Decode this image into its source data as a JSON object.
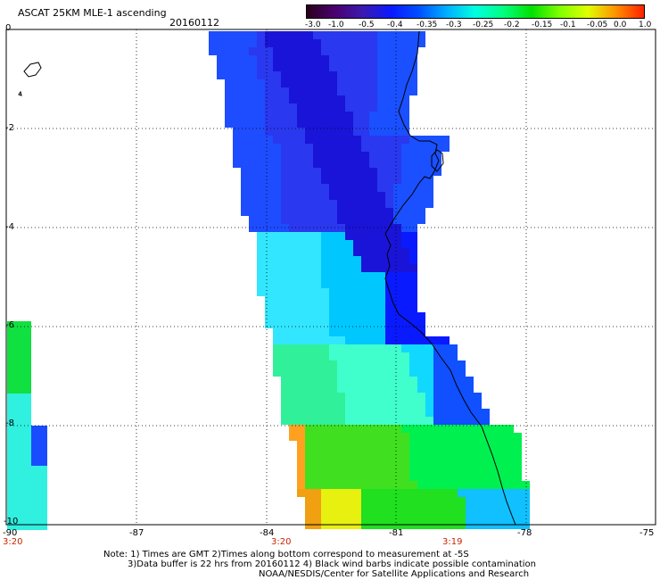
{
  "header": {
    "title": "ASCAT 25KM MLE-1 ascending",
    "date": "20160112"
  },
  "colorbar": {
    "labels": [
      "-3.0",
      "-1.0",
      "-0.5",
      "-0.4",
      "-0.35",
      "-0.3",
      "-0.25",
      "-0.2",
      "-0.15",
      "-0.1",
      "-0.05",
      "0.0",
      "1.0"
    ],
    "colors": [
      "#2a001a",
      "#4a0070",
      "#3a1ab0",
      "#0a1aff",
      "#0050ff",
      "#00b0ff",
      "#00ffe0",
      "#00ff80",
      "#00e000",
      "#80ff00",
      "#e0ff00",
      "#ff9000",
      "#ff2000"
    ]
  },
  "axes": {
    "lon_labels": [
      "-90",
      "-87",
      "-84",
      "-81",
      "-78",
      "-75"
    ],
    "lat_labels": [
      "0",
      "-2",
      "-4",
      "-6",
      "-8",
      "-10"
    ],
    "time_labels": [
      "3:20",
      "3:20",
      "3:19"
    ]
  },
  "notes": {
    "line1": "Note: 1) Times are GMT 2)Times along bottom correspond to measurement at -5S",
    "line2": "3)Data buffer is 22 hrs from 20160112 4) Black wind barbs indicate possible contamination",
    "line3": "NOAA/NESDIS/Center for Satellite Applications and Research"
  }
}
